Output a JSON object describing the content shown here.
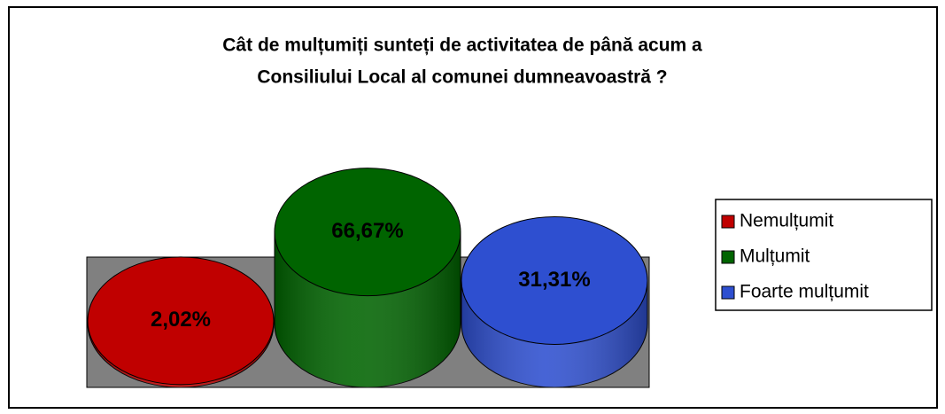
{
  "chart_data": {
    "type": "bar3d",
    "title": [
      "Cât de mulțumiți sunteți de activitatea de până acum a",
      "Consiliului Local al comunei dumneavoastră ?"
    ],
    "categories": [
      "Nemulțumit",
      "Mulțumit",
      "Foarte mulțumit"
    ],
    "values": [
      2.02,
      66.67,
      31.31
    ],
    "value_labels": [
      "2,02%",
      "66,67%",
      "31,31%"
    ],
    "colors": [
      "#c00000",
      "#006400",
      "#2e4fd0"
    ],
    "legend": "right"
  }
}
